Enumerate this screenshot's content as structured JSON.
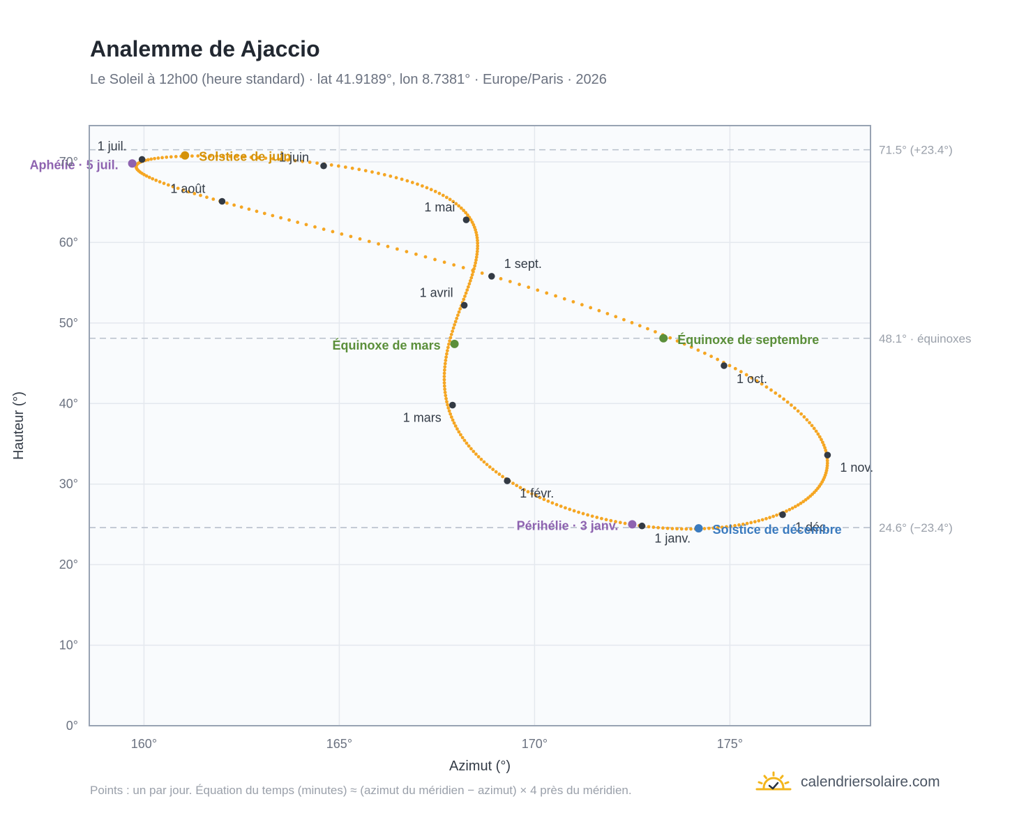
{
  "header": {
    "title": "Analemme de Ajaccio",
    "subtitle": "Le Soleil à 12h00 (heure standard) · lat 41.9189°, lon 8.7381° · Europe/Paris · 2026"
  },
  "footer": {
    "note": "Points : un par jour. Équation du temps (minutes) ≈ (azimut du méridien − azimut) × 4 près du méridien.",
    "brand": "calendriersolaire.com",
    "brand_icon": "sun-check-icon"
  },
  "chart_data": {
    "type": "scatter",
    "xlabel": "Azimut (°)",
    "ylabel": "Hauteur (°)",
    "xlim": [
      158.6,
      178.6
    ],
    "ylim": [
      0,
      74.5
    ],
    "xticks": [
      160,
      165,
      170,
      175
    ],
    "xtick_labels": [
      "160°",
      "165°",
      "170°",
      "175°"
    ],
    "yticks": [
      0,
      10,
      20,
      30,
      40,
      50,
      60,
      70
    ],
    "ytick_labels": [
      "0°",
      "10°",
      "20°",
      "30°",
      "40°",
      "50°",
      "60°",
      "70°"
    ],
    "grid": true,
    "colors": {
      "curve": "#f5a623",
      "month_marker": "#333a44",
      "solstice_june": "#d4920a",
      "solstice_december": "#3b7bbf",
      "equinox": "#5b8f3a",
      "aphelion_perihelion": "#8e63b0",
      "reference_line": "#b8c0cc",
      "plot_background": "#f9fbfd",
      "plot_border": "#98a3b3"
    },
    "reference_lines": [
      {
        "y": 71.5,
        "label": "71.5° (+23.4°)"
      },
      {
        "y": 48.1,
        "label": "48.1° · équinoxes"
      },
      {
        "y": 24.6,
        "label": "24.6° (−23.4°)"
      }
    ],
    "months": [
      {
        "label": "1 janv.",
        "az": 172.75,
        "alt": 24.8
      },
      {
        "label": "1 févr.",
        "az": 169.3,
        "alt": 30.4
      },
      {
        "label": "1 mars",
        "az": 167.9,
        "alt": 39.8
      },
      {
        "label": "1 avril",
        "az": 168.2,
        "alt": 52.2
      },
      {
        "label": "1 mai",
        "az": 168.25,
        "alt": 62.8
      },
      {
        "label": "1 juin",
        "az": 164.6,
        "alt": 69.5
      },
      {
        "label": "1 juil.",
        "az": 159.95,
        "alt": 70.3
      },
      {
        "label": "1 août",
        "az": 162.0,
        "alt": 65.1
      },
      {
        "label": "1 sept.",
        "az": 168.9,
        "alt": 55.8
      },
      {
        "label": "1 oct.",
        "az": 174.85,
        "alt": 44.7
      },
      {
        "label": "1 nov.",
        "az": 177.5,
        "alt": 33.6
      },
      {
        "label": "1 déc.",
        "az": 176.35,
        "alt": 26.2
      }
    ],
    "events": [
      {
        "label": "Solstice de juin",
        "az": 161.05,
        "alt": 70.8,
        "color": "#d4920a"
      },
      {
        "label": "Équinoxe de mars",
        "az": 167.95,
        "alt": 47.4,
        "color": "#5b8f3a"
      },
      {
        "label": "Équinoxe de septembre",
        "az": 173.3,
        "alt": 48.1,
        "color": "#5b8f3a"
      },
      {
        "label": "Solstice de décembre",
        "az": 174.2,
        "alt": 24.5,
        "color": "#3b7bbf"
      },
      {
        "label": "Aphélie · 5 juil.",
        "az": 159.7,
        "alt": 69.8,
        "color": "#8e63b0"
      },
      {
        "label": "Périhélie · 3 janv.",
        "az": 172.5,
        "alt": 25.0,
        "color": "#8e63b0"
      }
    ]
  }
}
